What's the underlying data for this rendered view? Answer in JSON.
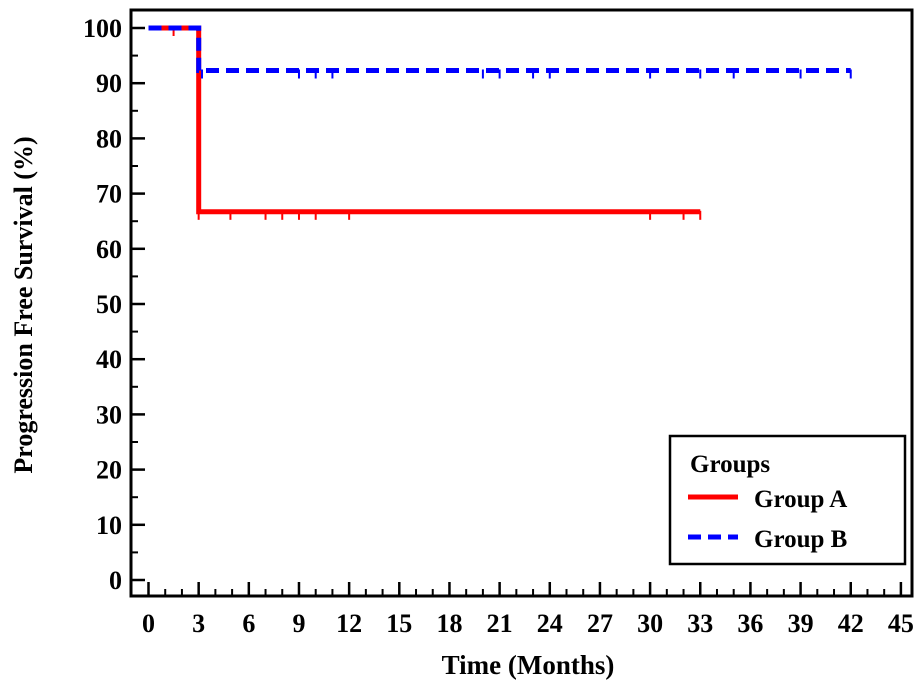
{
  "chart_data": {
    "type": "line",
    "subtype": "kaplan-meier step",
    "title": "",
    "xlabel": "Time (Months)",
    "ylabel": "Progression Free Survival (%)",
    "xlim": [
      0,
      45
    ],
    "ylim": [
      0,
      100
    ],
    "xticks": [
      0,
      3,
      6,
      9,
      12,
      15,
      18,
      21,
      24,
      27,
      30,
      33,
      36,
      39,
      42,
      45
    ],
    "yticks": [
      0,
      10,
      20,
      30,
      40,
      50,
      60,
      70,
      80,
      90,
      100
    ],
    "xtick_labels": [
      "0",
      "3",
      "6",
      "9",
      "12",
      "15",
      "18",
      "21",
      "24",
      "27",
      "30",
      "33",
      "36",
      "39",
      "42",
      "45"
    ],
    "ytick_labels": [
      "0",
      "10",
      "20",
      "30",
      "40",
      "50",
      "60",
      "70",
      "80",
      "90",
      "100"
    ],
    "grid": false,
    "legend": {
      "title": "Groups",
      "position": "bottom-right"
    },
    "series": [
      {
        "name": "Group A",
        "color": "#ff0000",
        "style": "solid",
        "x": [
          0,
          3,
          3,
          33
        ],
        "y": [
          100,
          100,
          66.7,
          66.7
        ],
        "censor_times": [
          1.5,
          3,
          4.9,
          7,
          8,
          9,
          10,
          12,
          30,
          32,
          33
        ],
        "censor_values": [
          100,
          66.7,
          66.7,
          66.7,
          66.7,
          66.7,
          66.7,
          66.7,
          66.7,
          66.7,
          66.7
        ]
      },
      {
        "name": "Group B",
        "color": "#0000ff",
        "style": "dashed",
        "x": [
          0,
          3,
          3,
          42
        ],
        "y": [
          100,
          100,
          92.3,
          92.3
        ],
        "censor_times": [
          3.2,
          9,
          10,
          11,
          20,
          21,
          23,
          24,
          30,
          33,
          35,
          39,
          42
        ],
        "censor_values": [
          92.3,
          92.3,
          92.3,
          92.3,
          92.3,
          92.3,
          92.3,
          92.3,
          92.3,
          92.3,
          92.3,
          92.3,
          92.3
        ]
      }
    ]
  }
}
